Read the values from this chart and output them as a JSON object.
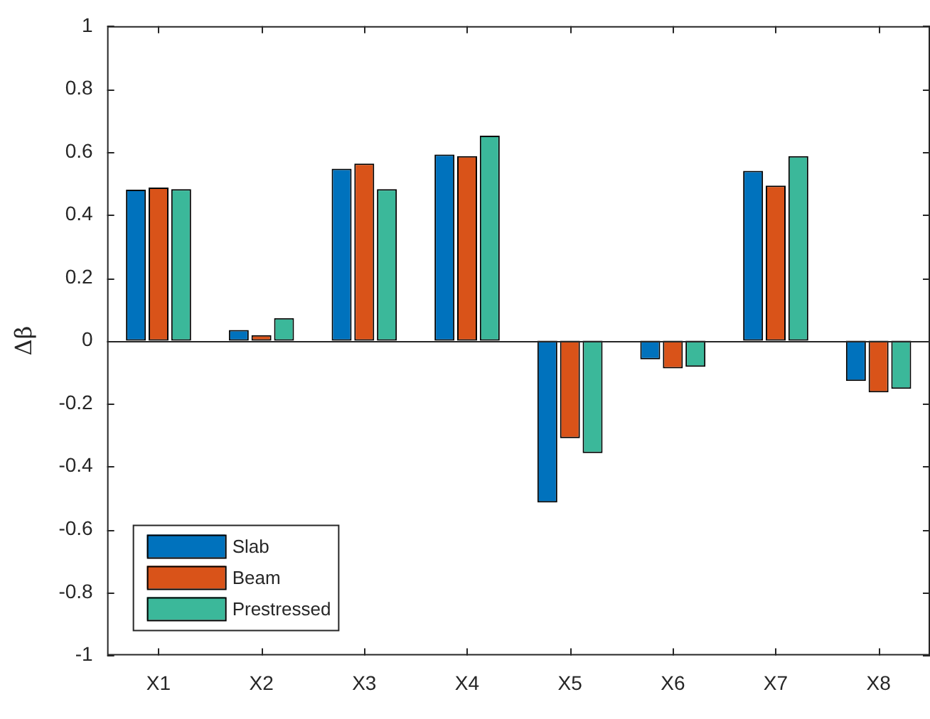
{
  "chart_data": {
    "type": "bar",
    "ylabel": "Δβ",
    "categories": [
      "X1",
      "X2",
      "X3",
      "X4",
      "X5",
      "X6",
      "X7",
      "X8"
    ],
    "series": [
      {
        "name": "Slab",
        "color": "#0072bd",
        "values": [
          0.48,
          0.034,
          0.547,
          0.592,
          -0.514,
          -0.059,
          0.54,
          -0.128
        ]
      },
      {
        "name": "Beam",
        "color": "#d95319",
        "values": [
          0.487,
          0.018,
          0.563,
          0.587,
          -0.31,
          -0.088,
          0.493,
          -0.164
        ]
      },
      {
        "name": "Prestressed",
        "color": "#3bb89a",
        "values": [
          0.482,
          0.072,
          0.482,
          0.652,
          -0.357,
          -0.083,
          0.587,
          -0.153
        ]
      }
    ],
    "ylim": [
      -1,
      1
    ],
    "yticks": [
      -1,
      -0.8,
      -0.6,
      -0.4,
      -0.2,
      0,
      0.2,
      0.4,
      0.6,
      0.8,
      1
    ],
    "legend": "bottom left"
  }
}
